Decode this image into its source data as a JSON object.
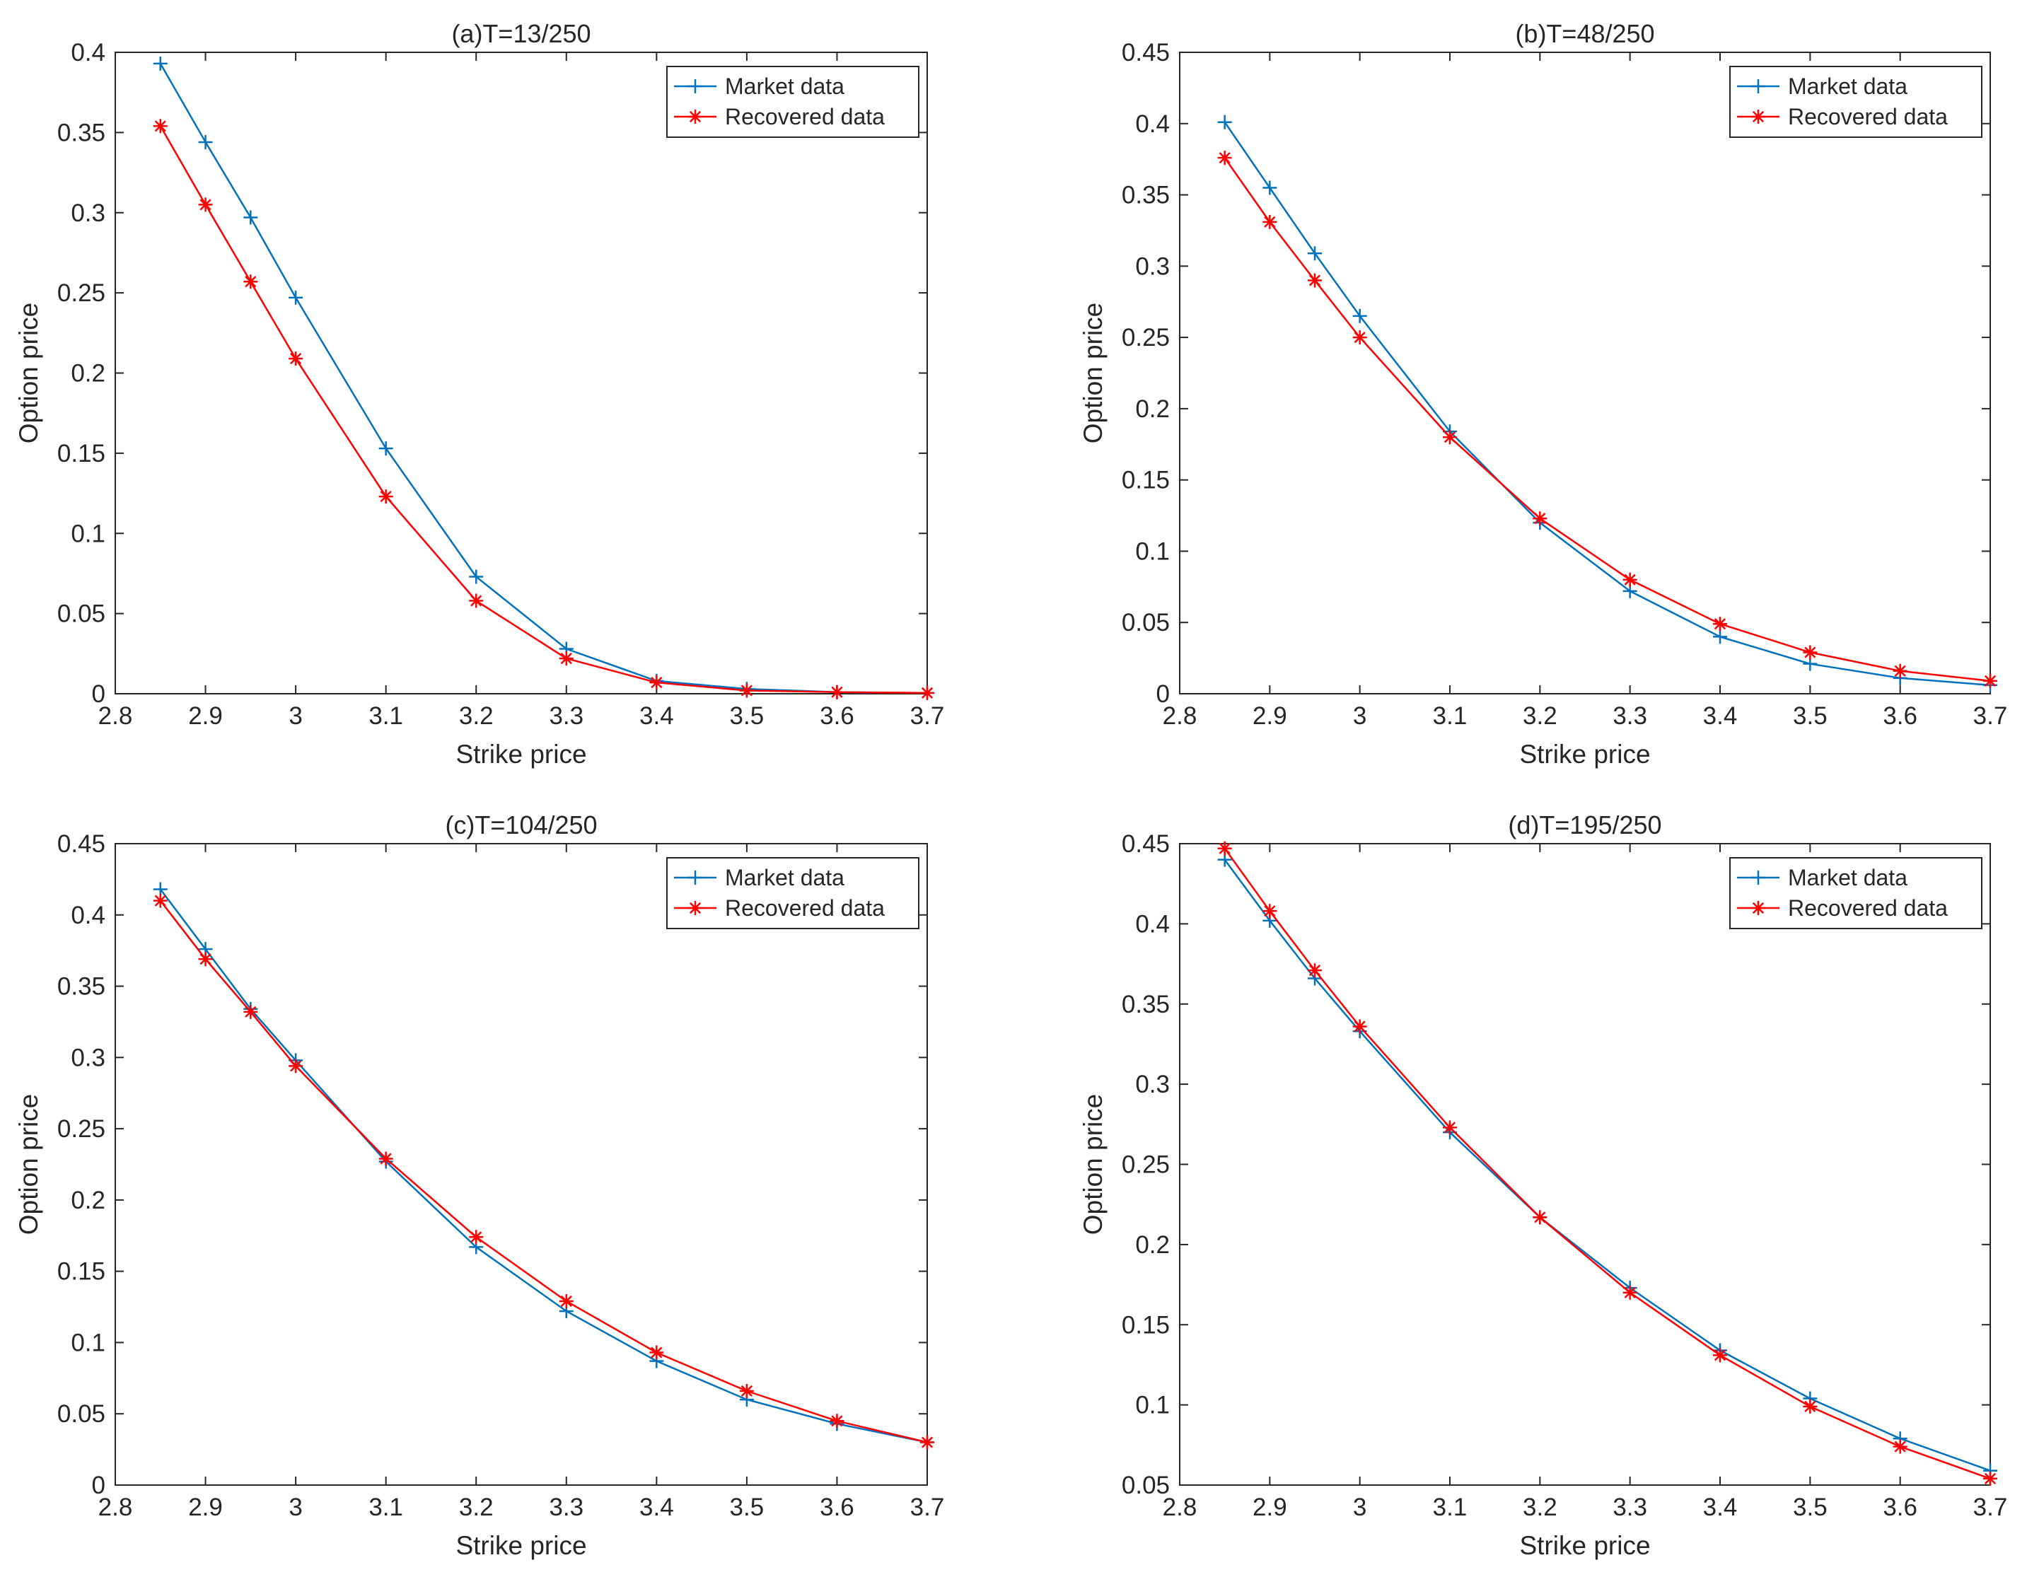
{
  "colors": {
    "market": "#0072BD",
    "recovered": "#FF0000",
    "axis": "#262626"
  },
  "legend_labels": [
    "Market data",
    "Recovered data"
  ],
  "chart_data": [
    {
      "type": "line",
      "title": "(a)T=13/250",
      "xlabel": "Strike price",
      "ylabel": "Option price",
      "xlim": [
        2.8,
        3.7
      ],
      "ylim": [
        0,
        0.4
      ],
      "xticks": [
        "2.8",
        "2.9",
        "3",
        "3.1",
        "3.2",
        "3.3",
        "3.4",
        "3.5",
        "3.6",
        "3.7"
      ],
      "yticks": [
        "0",
        "0.05",
        "0.1",
        "0.15",
        "0.2",
        "0.25",
        "0.3",
        "0.35",
        "0.4"
      ],
      "legend": "top-right",
      "x": [
        2.85,
        2.9,
        2.95,
        3.0,
        3.1,
        3.2,
        3.3,
        3.4,
        3.5,
        3.6,
        3.7
      ],
      "series": [
        {
          "name": "Market data",
          "marker": "plus",
          "values": [
            0.393,
            0.344,
            0.297,
            0.247,
            0.153,
            0.073,
            0.028,
            0.008,
            0.003,
            0.001,
            0.0005
          ]
        },
        {
          "name": "Recovered data",
          "marker": "star",
          "values": [
            0.354,
            0.305,
            0.257,
            0.209,
            0.123,
            0.058,
            0.022,
            0.007,
            0.002,
            0.001,
            0.0005
          ]
        }
      ]
    },
    {
      "type": "line",
      "title": "(b)T=48/250",
      "xlabel": "Strike price",
      "ylabel": "Option price",
      "xlim": [
        2.8,
        3.7
      ],
      "ylim": [
        0,
        0.45
      ],
      "xticks": [
        "2.8",
        "2.9",
        "3",
        "3.1",
        "3.2",
        "3.3",
        "3.4",
        "3.5",
        "3.6",
        "3.7"
      ],
      "yticks": [
        "0",
        "0.05",
        "0.1",
        "0.15",
        "0.2",
        "0.25",
        "0.3",
        "0.35",
        "0.4",
        "0.45"
      ],
      "legend": "top-right",
      "x": [
        2.85,
        2.9,
        2.95,
        3.0,
        3.1,
        3.2,
        3.3,
        3.4,
        3.5,
        3.6,
        3.7
      ],
      "series": [
        {
          "name": "Market data",
          "marker": "plus",
          "values": [
            0.401,
            0.355,
            0.309,
            0.265,
            0.184,
            0.12,
            0.072,
            0.04,
            0.021,
            0.011,
            0.006
          ]
        },
        {
          "name": "Recovered data",
          "marker": "star",
          "values": [
            0.376,
            0.331,
            0.29,
            0.25,
            0.18,
            0.123,
            0.08,
            0.049,
            0.029,
            0.016,
            0.009
          ]
        }
      ]
    },
    {
      "type": "line",
      "title": "(c)T=104/250",
      "xlabel": "Strike price",
      "ylabel": "Option price",
      "xlim": [
        2.8,
        3.7
      ],
      "ylim": [
        0,
        0.45
      ],
      "xticks": [
        "2.8",
        "2.9",
        "3",
        "3.1",
        "3.2",
        "3.3",
        "3.4",
        "3.5",
        "3.6",
        "3.7"
      ],
      "yticks": [
        "0",
        "0.05",
        "0.1",
        "0.15",
        "0.2",
        "0.25",
        "0.3",
        "0.35",
        "0.4",
        "0.45"
      ],
      "legend": "top-right",
      "x": [
        2.85,
        2.9,
        2.95,
        3.0,
        3.1,
        3.2,
        3.3,
        3.4,
        3.5,
        3.6,
        3.7
      ],
      "series": [
        {
          "name": "Market data",
          "marker": "plus",
          "values": [
            0.418,
            0.376,
            0.334,
            0.298,
            0.227,
            0.167,
            0.122,
            0.087,
            0.06,
            0.043,
            0.03
          ]
        },
        {
          "name": "Recovered data",
          "marker": "star",
          "values": [
            0.41,
            0.369,
            0.332,
            0.294,
            0.229,
            0.174,
            0.129,
            0.093,
            0.066,
            0.045,
            0.03
          ]
        }
      ]
    },
    {
      "type": "line",
      "title": "(d)T=195/250",
      "xlabel": "Strike price",
      "ylabel": "Option price",
      "xlim": [
        2.8,
        3.7
      ],
      "ylim": [
        0.05,
        0.45
      ],
      "xticks": [
        "2.8",
        "2.9",
        "3",
        "3.1",
        "3.2",
        "3.3",
        "3.4",
        "3.5",
        "3.6",
        "3.7"
      ],
      "yticks": [
        "0.05",
        "0.1",
        "0.15",
        "0.2",
        "0.25",
        "0.3",
        "0.35",
        "0.4",
        "0.45"
      ],
      "legend": "top-right",
      "x": [
        2.85,
        2.9,
        2.95,
        3.0,
        3.1,
        3.2,
        3.3,
        3.4,
        3.5,
        3.6,
        3.7
      ],
      "series": [
        {
          "name": "Market data",
          "marker": "plus",
          "values": [
            0.44,
            0.402,
            0.366,
            0.333,
            0.27,
            0.217,
            0.173,
            0.134,
            0.104,
            0.079,
            0.059
          ]
        },
        {
          "name": "Recovered data",
          "marker": "star",
          "values": [
            0.447,
            0.408,
            0.371,
            0.336,
            0.273,
            0.217,
            0.17,
            0.131,
            0.099,
            0.074,
            0.054
          ]
        }
      ]
    }
  ]
}
